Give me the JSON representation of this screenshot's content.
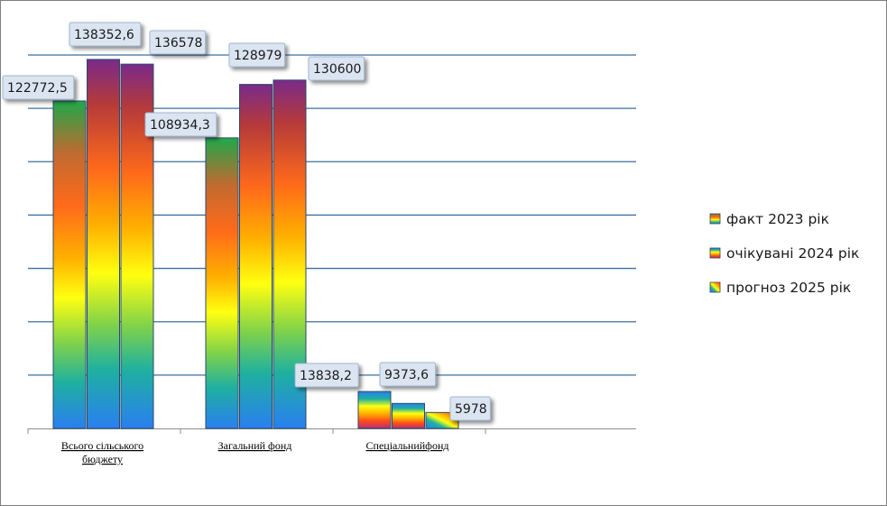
{
  "chart_data": {
    "type": "bar",
    "categories": [
      "Всього сільського бюджету",
      "Загальний фонд",
      "Спеціальнийфонд"
    ],
    "series": [
      {
        "name": "факт 2023 рік",
        "values": [
          122772.5,
          108934.3,
          13838.2
        ],
        "labels": [
          "122772,5",
          "108934,3",
          "13838,2"
        ]
      },
      {
        "name": "очікувані 2024 рік",
        "values": [
          138352.6,
          128979,
          9373.6
        ],
        "labels": [
          "138352,6",
          "128979",
          "9373,6"
        ]
      },
      {
        "name": "прогноз 2025 рік",
        "values": [
          136578,
          130600,
          5978
        ],
        "labels": [
          "136578",
          "130600",
          "5978"
        ]
      }
    ],
    "ylim": [
      0,
      140000
    ],
    "grid": true,
    "legend": "right"
  },
  "colors": {
    "gridline": "#3e6f9e",
    "label_fill": "#dbe5f1",
    "label_stroke": "#9fb6d0"
  }
}
